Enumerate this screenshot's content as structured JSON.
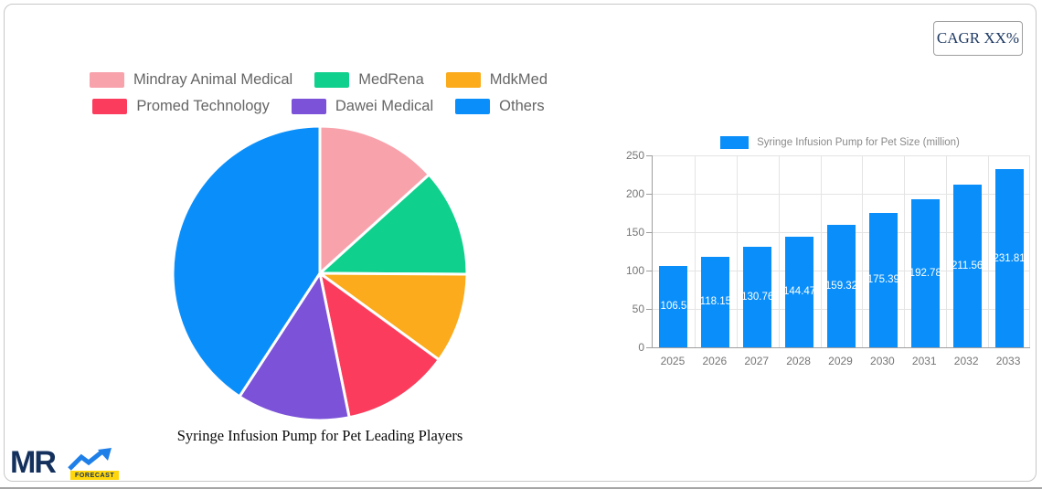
{
  "cagr_badge": {
    "label": "CAGR XX%",
    "text_color": "#1f3a63"
  },
  "logo": {
    "text": "MR",
    "badge": "FORECAST",
    "navy": "#14315d",
    "arrow_blue": "#1f7fe8",
    "badge_yellow": "#ffd60a"
  },
  "chart_data": [
    {
      "type": "pie",
      "title": "Syringe Infusion Pump for Pet Leading Players",
      "labels": [
        "Mindray Animal Medical",
        "MedRena",
        "MdkMed",
        "Promed Technology",
        "Dawei Medical",
        "Others"
      ],
      "values_percent": [
        13.3,
        11.8,
        9.9,
        11.8,
        12.4,
        40.8
      ],
      "colors": [
        "#f8a2ac",
        "#10d08d",
        "#fbab1b",
        "#fb3c5c",
        "#7b52d8",
        "#0a8ffa"
      ],
      "start_angle_deg": 0,
      "direction": "clockwise",
      "legend_position": "top",
      "legend_rows": 2
    },
    {
      "type": "bar",
      "series_name": "Syringe Infusion Pump for Pet Size (million)",
      "categories": [
        "2025",
        "2026",
        "2027",
        "2028",
        "2029",
        "2030",
        "2031",
        "2032",
        "2033"
      ],
      "values": [
        106.5,
        118.15,
        130.76,
        144.47,
        159.32,
        175.39,
        192.78,
        211.56,
        231.81
      ],
      "bar_color": "#0a8ffa",
      "ylim": [
        0,
        250
      ],
      "yticks": [
        0,
        50,
        100,
        150,
        200,
        250
      ],
      "grid": true,
      "value_labels": "inside-center-white",
      "legend_position": "top"
    }
  ]
}
